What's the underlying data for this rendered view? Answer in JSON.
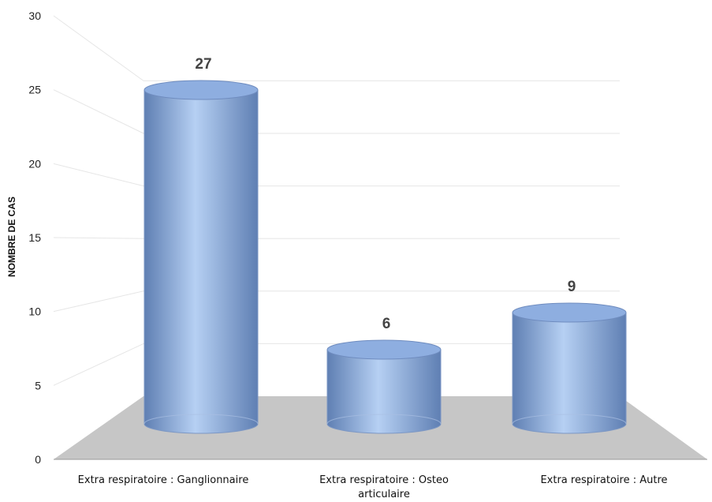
{
  "chart_data": {
    "type": "bar",
    "style": "3d-cylinder",
    "title": "",
    "xlabel": "",
    "ylabel": "NOMBRE DE CAS",
    "ylim": [
      0,
      30
    ],
    "yticks": [
      0,
      5,
      10,
      15,
      20,
      25,
      30
    ],
    "categories": [
      [
        "Extra respiratoire : Ganglionnaire"
      ],
      [
        "Extra respiratoire : Osteo",
        "articulaire"
      ],
      [
        "Extra respiratoire : Autre"
      ]
    ],
    "values": [
      27,
      6,
      9
    ],
    "data_labels": [
      "27",
      "6",
      "9"
    ],
    "grid": true,
    "legend": "none",
    "colors": {
      "bar_light": "#b6d0f3",
      "bar_mid": "#8eaee0",
      "bar_dark": "#5f7fb3",
      "floor": "#c6c6c6",
      "grid": "#e6e6e6"
    }
  }
}
